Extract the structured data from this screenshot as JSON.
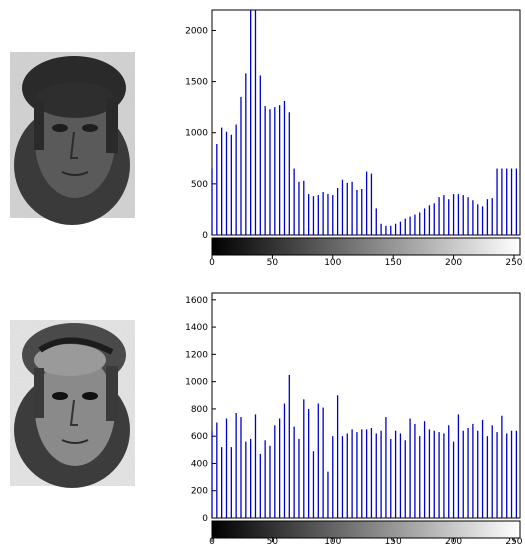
{
  "chart_data": [
    {
      "type": "bar",
      "style": "stem",
      "image_panel": "original-face-image",
      "colorbar": "grayscale",
      "bar_color": "#0000cc",
      "xlim": [
        0,
        255
      ],
      "ylim": [
        0,
        2200
      ],
      "x_ticks": [
        "0",
        "50",
        "100",
        "150",
        "200",
        "250"
      ],
      "y_ticks": [
        "0",
        "500",
        "1000",
        "1500",
        "2000"
      ],
      "x": [
        0,
        4,
        8,
        12,
        16,
        20,
        24,
        28,
        32,
        36,
        40,
        44,
        48,
        52,
        56,
        60,
        64,
        68,
        72,
        76,
        80,
        84,
        88,
        92,
        96,
        100,
        104,
        108,
        112,
        116,
        120,
        124,
        128,
        132,
        136,
        140,
        144,
        148,
        152,
        156,
        160,
        164,
        168,
        172,
        176,
        180,
        184,
        188,
        192,
        196,
        200,
        204,
        208,
        212,
        216,
        220,
        224,
        228,
        232,
        236,
        240,
        244,
        248,
        252
      ],
      "values": [
        650,
        890,
        1050,
        1010,
        980,
        1080,
        1350,
        1580,
        2200,
        2200,
        1560,
        1260,
        1230,
        1250,
        1270,
        1310,
        1200,
        650,
        520,
        530,
        400,
        380,
        390,
        420,
        400,
        390,
        460,
        540,
        510,
        520,
        440,
        450,
        620,
        600,
        260,
        110,
        90,
        90,
        110,
        130,
        160,
        180,
        200,
        220,
        260,
        290,
        310,
        370,
        390,
        350,
        400,
        400,
        390,
        370,
        340,
        300,
        280,
        350,
        360,
        650,
        650,
        650,
        650,
        650
      ]
    },
    {
      "type": "bar",
      "style": "stem",
      "image_panel": "equalized-face-image",
      "colorbar": "grayscale",
      "bar_color": "#0000cc",
      "xlim": [
        0,
        255
      ],
      "ylim": [
        0,
        1650
      ],
      "x_ticks": [
        "0",
        "50",
        "100",
        "150",
        "200",
        "250"
      ],
      "y_ticks": [
        "0",
        "200",
        "400",
        "600",
        "800",
        "1000",
        "1200",
        "1400",
        "1600"
      ],
      "x": [
        0,
        4,
        8,
        12,
        16,
        20,
        24,
        28,
        32,
        36,
        40,
        44,
        48,
        52,
        56,
        60,
        64,
        68,
        72,
        76,
        80,
        84,
        88,
        92,
        96,
        100,
        104,
        108,
        112,
        116,
        120,
        124,
        128,
        132,
        136,
        140,
        144,
        148,
        152,
        156,
        160,
        164,
        168,
        172,
        176,
        180,
        184,
        188,
        192,
        196,
        200,
        204,
        208,
        212,
        216,
        220,
        224,
        228,
        232,
        236,
        240,
        244,
        248,
        252
      ],
      "values": [
        640,
        700,
        520,
        730,
        520,
        770,
        740,
        560,
        580,
        760,
        470,
        570,
        530,
        680,
        730,
        840,
        1050,
        670,
        580,
        870,
        800,
        490,
        840,
        810,
        340,
        600,
        900,
        600,
        620,
        650,
        630,
        650,
        650,
        660,
        620,
        640,
        740,
        580,
        640,
        620,
        570,
        730,
        690,
        600,
        710,
        650,
        640,
        630,
        620,
        680,
        560,
        760,
        640,
        660,
        690,
        640,
        720,
        600,
        680,
        630,
        750,
        620,
        640,
        640
      ]
    }
  ]
}
